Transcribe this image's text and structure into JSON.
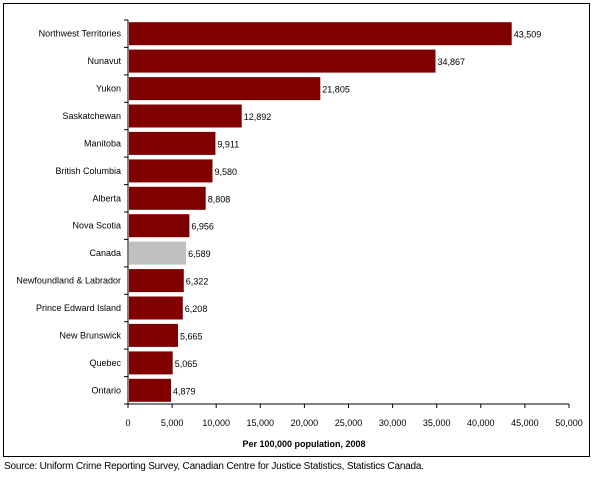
{
  "chart_data": {
    "type": "bar",
    "orientation": "horizontal",
    "title": "",
    "xlabel": "Per 100,000 population, 2008",
    "ylabel": "",
    "categories": [
      "Northwest Territories",
      "Nunavut",
      "Yukon",
      "Saskatchewan",
      "Manitoba",
      "British Columbia",
      "Alberta",
      "Nova Scotia",
      "Canada",
      "Newfoundland & Labrador",
      "Prince Edward Island",
      "New Brunswick",
      "Quebec",
      "Ontario"
    ],
    "values": [
      43509,
      34867,
      21805,
      12892,
      9911,
      9580,
      8808,
      6956,
      6589,
      6322,
      6208,
      5665,
      5065,
      4879
    ],
    "value_labels": [
      "43,509",
      "34,867",
      "21,805",
      "12,892",
      "9,911",
      "9,580",
      "8,808",
      "6,956",
      "6,589",
      "6,322",
      "6,208",
      "5,665",
      "5,065",
      "4,879"
    ],
    "xlim": [
      0,
      50000
    ],
    "xticks": [
      0,
      5000,
      10000,
      15000,
      20000,
      25000,
      30000,
      35000,
      40000,
      45000,
      50000
    ],
    "xtick_labels": [
      "0",
      "5,000",
      "10,000",
      "15,000",
      "20,000",
      "25,000",
      "30,000",
      "35,000",
      "40,000",
      "45,000",
      "50,000"
    ],
    "grid": false,
    "legend": "none",
    "bar_color": "#800000",
    "highlight_category": "Canada",
    "highlight_color": "#c0c0c0"
  },
  "footer": {
    "source": "Source: Uniform Crime Reporting Survey, Canadian Centre for Justice Statistics, Statistics Canada."
  }
}
